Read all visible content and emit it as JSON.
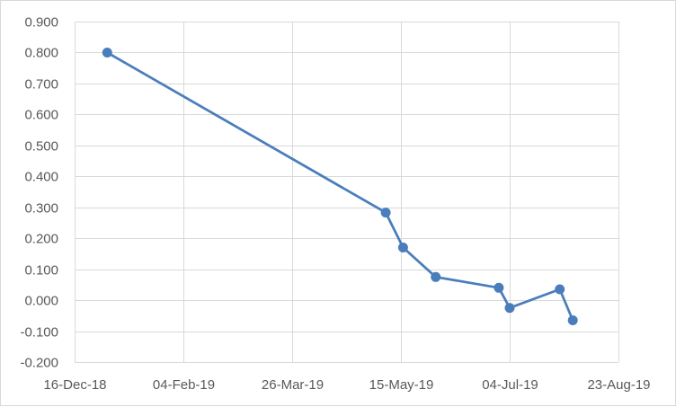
{
  "chart_data": {
    "type": "line",
    "title": "",
    "xlabel": "",
    "ylabel": "",
    "x_axis": {
      "type": "date",
      "min": "2018-12-16",
      "max": "2019-08-23",
      "tick_dates": [
        "2018-12-16",
        "2019-02-04",
        "2019-03-26",
        "2019-05-15",
        "2019-07-04",
        "2019-08-23"
      ],
      "tick_labels": [
        "16-Dec-18",
        "04-Feb-19",
        "26-Mar-19",
        "15-May-19",
        "04-Jul-19",
        "23-Aug-19"
      ]
    },
    "y_axis": {
      "min": -0.2,
      "max": 0.9,
      "step": 0.1,
      "tick_labels": [
        "-0.200",
        "-0.100",
        "0.000",
        "0.100",
        "0.200",
        "0.300",
        "0.400",
        "0.500",
        "0.600",
        "0.700",
        "0.800",
        "0.900"
      ]
    },
    "grid": true,
    "legend": "none",
    "series": [
      {
        "color": "#4a7ebb",
        "points": [
          {
            "x": "2018-12-31",
            "y": 0.8
          },
          {
            "x": "2019-05-08",
            "y": 0.283
          },
          {
            "x": "2019-05-16",
            "y": 0.17
          },
          {
            "x": "2019-05-31",
            "y": 0.075
          },
          {
            "x": "2019-06-29",
            "y": 0.04
          },
          {
            "x": "2019-07-04",
            "y": -0.025
          },
          {
            "x": "2019-07-27",
            "y": 0.035
          },
          {
            "x": "2019-08-02",
            "y": -0.065
          }
        ]
      }
    ]
  }
}
